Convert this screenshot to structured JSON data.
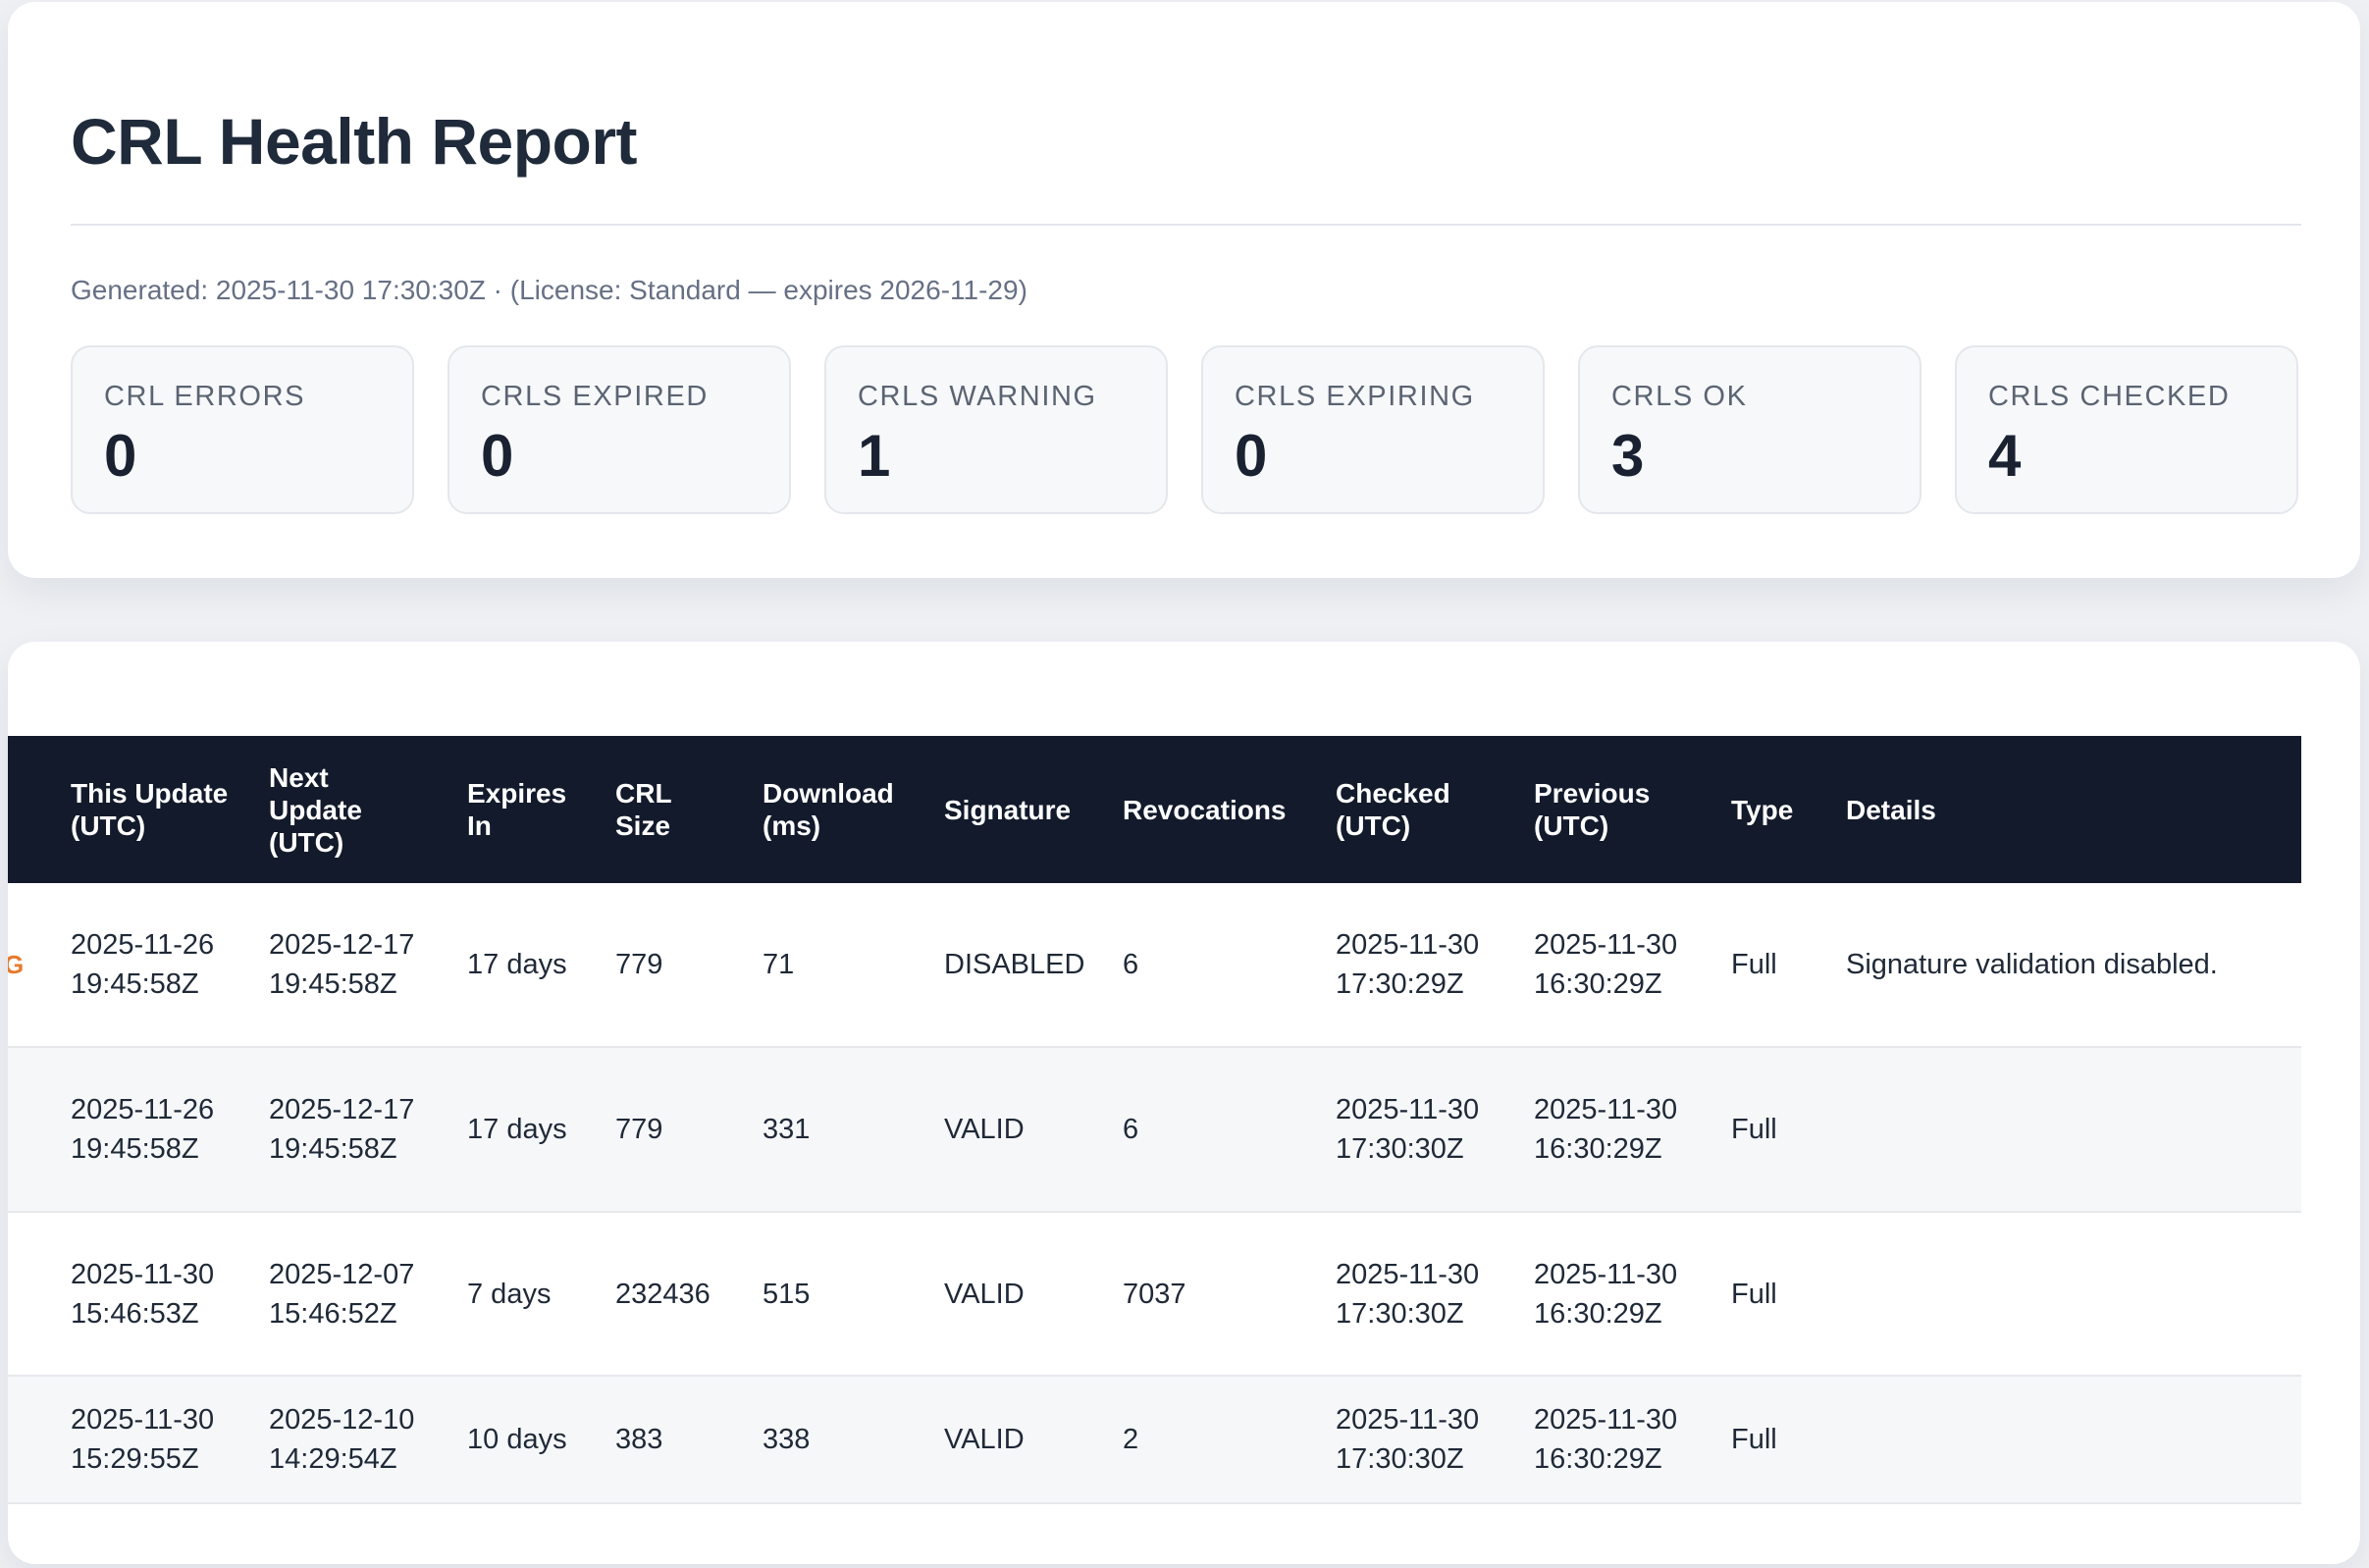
{
  "report": {
    "title": "CRL Health Report",
    "generated": "Generated: 2025-11-30 17:30:30Z · (License: Standard — expires 2026-11-29)"
  },
  "stats": [
    {
      "label": "CRL ERRORS",
      "value": "0"
    },
    {
      "label": "CRLS EXPIRED",
      "value": "0"
    },
    {
      "label": "CRLS WARNING",
      "value": "1"
    },
    {
      "label": "CRLS EXPIRING",
      "value": "0"
    },
    {
      "label": "CRLS OK",
      "value": "3"
    },
    {
      "label": "CRLS CHECKED",
      "value": "4"
    }
  ],
  "table": {
    "columns": [
      "This Update (UTC)",
      "Next Update (UTC)",
      "Expires In",
      "CRL Size",
      "Download (ms)",
      "Signature",
      "Revocations",
      "Checked (UTC)",
      "Previous (UTC)",
      "Type",
      "Details"
    ],
    "rows": [
      {
        "flag": "G",
        "this_update": [
          "2025-11-26",
          "19:45:58Z"
        ],
        "next_update": [
          "2025-12-17",
          "19:45:58Z"
        ],
        "expires_in": "17 days",
        "crl_size": "779",
        "download_ms": "71",
        "signature": "DISABLED",
        "revocations": "6",
        "checked": [
          "2025-11-30",
          "17:30:29Z"
        ],
        "previous": [
          "2025-11-30",
          "16:30:29Z"
        ],
        "type": "Full",
        "details": "Signature validation disabled."
      },
      {
        "flag": "",
        "this_update": [
          "2025-11-26",
          "19:45:58Z"
        ],
        "next_update": [
          "2025-12-17",
          "19:45:58Z"
        ],
        "expires_in": "17 days",
        "crl_size": "779",
        "download_ms": "331",
        "signature": "VALID",
        "revocations": "6",
        "checked": [
          "2025-11-30",
          "17:30:30Z"
        ],
        "previous": [
          "2025-11-30",
          "16:30:29Z"
        ],
        "type": "Full",
        "details": ""
      },
      {
        "flag": "",
        "this_update": [
          "2025-11-30",
          "15:46:53Z"
        ],
        "next_update": [
          "2025-12-07",
          "15:46:52Z"
        ],
        "expires_in": "7 days",
        "crl_size": "232436",
        "download_ms": "515",
        "signature": "VALID",
        "revocations": "7037",
        "checked": [
          "2025-11-30",
          "17:30:30Z"
        ],
        "previous": [
          "2025-11-30",
          "16:30:29Z"
        ],
        "type": "Full",
        "details": ""
      },
      {
        "flag": "",
        "this_update": [
          "2025-11-30",
          "15:29:55Z"
        ],
        "next_update": [
          "2025-12-10",
          "14:29:54Z"
        ],
        "expires_in": "10 days",
        "crl_size": "383",
        "download_ms": "338",
        "signature": "VALID",
        "revocations": "2",
        "checked": [
          "2025-11-30",
          "17:30:30Z"
        ],
        "previous": [
          "2025-11-30",
          "16:30:29Z"
        ],
        "type": "Full",
        "details": ""
      }
    ]
  },
  "colors": {
    "header_bg": "#121a2b",
    "flag": "#e67a2e",
    "stat_bg": "#f7f8fa"
  }
}
